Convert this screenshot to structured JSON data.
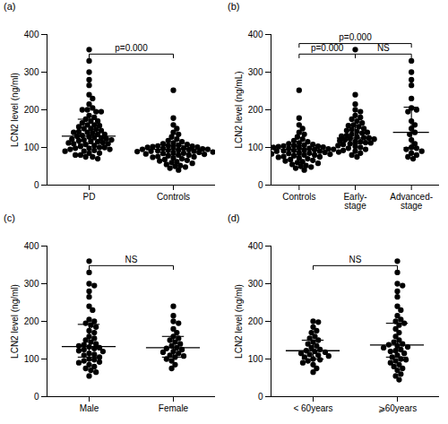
{
  "chart_data": [
    {
      "type": "scatter",
      "title": "(a)",
      "y_label": "LCN2 level (ng/ml)",
      "categories": [
        "PD",
        "Controls"
      ],
      "values": [
        [
          360,
          240,
          215,
          200,
          195,
          185,
          180,
          175,
          170,
          165,
          160,
          158,
          155,
          150,
          148,
          145,
          142,
          140,
          138,
          135,
          132,
          130,
          128,
          126,
          125,
          123,
          122,
          120,
          118,
          116,
          115,
          113,
          112,
          110,
          108,
          105,
          103,
          100,
          98,
          95,
          92,
          90,
          85,
          80,
          75,
          330,
          300,
          280,
          265,
          230,
          205,
          200,
          195,
          170,
          160,
          150,
          140,
          135,
          120,
          110,
          100,
          98,
          95,
          90,
          85,
          80,
          75,
          70
        ],
        [
          252,
          178,
          160,
          150,
          140,
          135,
          128,
          122,
          118,
          115,
          112,
          110,
          108,
          106,
          105,
          104,
          103,
          102,
          101,
          100,
          99,
          98,
          97,
          96,
          95,
          95,
          94,
          93,
          92,
          91,
          90,
          90,
          89,
          88,
          87,
          86,
          85,
          84,
          83,
          82,
          80,
          80,
          78,
          76,
          75,
          74,
          72,
          70,
          68,
          66,
          64,
          62,
          60,
          58,
          55,
          52,
          50,
          48,
          45,
          40
        ]
      ],
      "medians": [
        130,
        95
      ],
      "iqr": [
        [
          110,
          175
        ],
        [
          80,
          105
        ]
      ],
      "comparisons": [
        {
          "groups": [
            0,
            1
          ],
          "label": "p=0.000"
        }
      ],
      "color": "#000000",
      "ylim": [
        0,
        400
      ],
      "yticks": [
        0,
        100,
        200,
        300,
        400
      ]
    },
    {
      "type": "scatter",
      "title": "(b)",
      "y_label": "LCN2 level (ng/mL)",
      "categories": [
        "Controls",
        "Early-\nstage",
        "Advanced-\nstage"
      ],
      "values": [
        [
          252,
          178,
          160,
          150,
          140,
          135,
          128,
          122,
          118,
          115,
          112,
          110,
          108,
          106,
          105,
          104,
          103,
          102,
          101,
          100,
          99,
          98,
          97,
          96,
          95,
          95,
          94,
          93,
          92,
          91,
          90,
          90,
          89,
          88,
          87,
          86,
          85,
          84,
          83,
          82,
          80,
          80,
          78,
          76,
          75,
          74,
          72,
          70,
          68,
          66,
          64,
          62,
          60,
          58,
          55,
          52,
          50,
          48,
          45,
          40
        ],
        [
          360,
          240,
          215,
          200,
          195,
          185,
          180,
          175,
          170,
          165,
          160,
          158,
          155,
          150,
          148,
          145,
          142,
          140,
          138,
          135,
          132,
          130,
          128,
          126,
          125,
          123,
          122,
          120,
          118,
          116,
          115,
          113,
          112,
          110,
          108,
          105,
          103,
          100,
          98,
          95,
          92,
          90,
          85,
          80,
          75
        ],
        [
          330,
          300,
          280,
          265,
          230,
          205,
          200,
          195,
          170,
          160,
          150,
          140,
          135,
          120,
          110,
          100,
          98,
          95,
          90,
          85,
          80,
          75,
          70
        ]
      ],
      "medians": [
        95,
        125,
        140
      ],
      "iqr": [
        [
          80,
          105
        ],
        [
          110,
          160
        ],
        [
          100,
          207
        ]
      ],
      "comparisons": [
        {
          "groups": [
            0,
            2
          ],
          "label": "p=0.000"
        },
        {
          "groups": [
            0,
            1
          ],
          "label": "p=0.000"
        },
        {
          "groups": [
            1,
            2
          ],
          "label": "NS"
        }
      ],
      "color": "#000000",
      "ylim": [
        0,
        400
      ],
      "yticks": [
        0,
        100,
        200,
        300,
        400
      ]
    },
    {
      "type": "scatter",
      "title": "(c)",
      "y_label": "LCN2 level (ng/ml)",
      "categories": [
        "Male",
        "Female"
      ],
      "values": [
        [
          360,
          330,
          300,
          295,
          280,
          265,
          240,
          230,
          205,
          200,
          195,
          190,
          185,
          175,
          170,
          160,
          155,
          150,
          145,
          140,
          138,
          135,
          132,
          130,
          128,
          125,
          122,
          120,
          115,
          112,
          110,
          105,
          100,
          98,
          95,
          92,
          90,
          85,
          80,
          75,
          70,
          65,
          55
        ],
        [
          240,
          215,
          200,
          195,
          180,
          170,
          160,
          155,
          150,
          145,
          140,
          135,
          130,
          128,
          125,
          120,
          118,
          115,
          110,
          108,
          105,
          100,
          95,
          85,
          75
        ]
      ],
      "medians": [
        133,
        130
      ],
      "iqr": [
        [
          105,
          192
        ],
        [
          105,
          160
        ]
      ],
      "comparisons": [
        {
          "groups": [
            0,
            1
          ],
          "label": "NS"
        }
      ],
      "color": "#000000",
      "ylim": [
        0,
        400
      ],
      "yticks": [
        0,
        100,
        200,
        300,
        400
      ]
    },
    {
      "type": "scatter",
      "title": "(d)",
      "y_label": "LCN2 level (ng/ml)",
      "categories": [
        "< 60years",
        "⩾60years"
      ],
      "values": [
        [
          200,
          198,
          185,
          175,
          170,
          160,
          155,
          150,
          145,
          140,
          135,
          130,
          125,
          122,
          120,
          118,
          115,
          112,
          110,
          108,
          105,
          100,
          98,
          95,
          90,
          85,
          75,
          65
        ],
        [
          360,
          330,
          300,
          295,
          280,
          265,
          240,
          230,
          215,
          205,
          200,
          195,
          190,
          180,
          170,
          160,
          150,
          145,
          140,
          138,
          135,
          132,
          130,
          125,
          122,
          120,
          115,
          110,
          105,
          100,
          98,
          95,
          90,
          85,
          80,
          75,
          70,
          60,
          55,
          45
        ]
      ],
      "medians": [
        122,
        137
      ],
      "iqr": [
        [
          100,
          150
        ],
        [
          105,
          195
        ]
      ],
      "comparisons": [
        {
          "groups": [
            0,
            1
          ],
          "label": "NS"
        }
      ],
      "color": "#000000",
      "ylim": [
        0,
        400
      ],
      "yticks": [
        0,
        100,
        200,
        300,
        400
      ]
    }
  ]
}
